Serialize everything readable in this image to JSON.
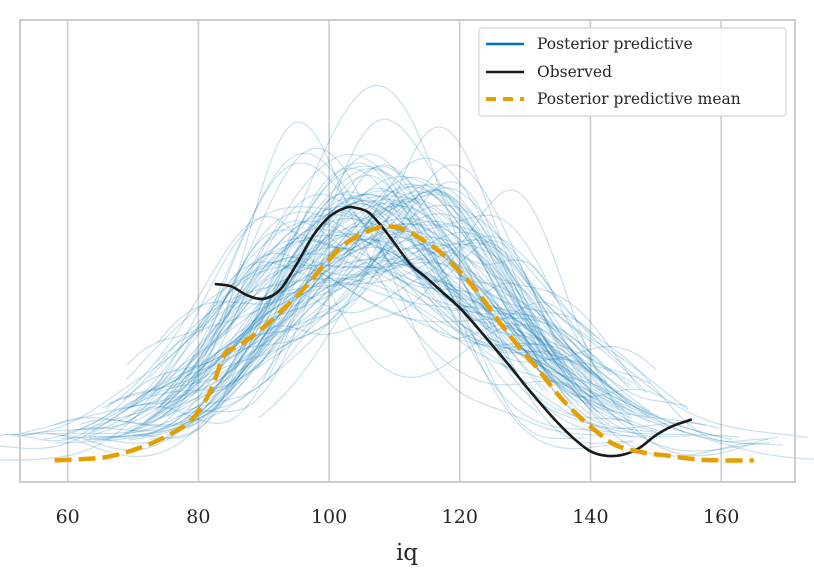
{
  "chart_data": {
    "type": "line",
    "title": "",
    "xlabel": "iq",
    "ylabel": "",
    "xlim": [
      52.7,
      171.3
    ],
    "ylim": [
      -0.0019,
      0.0387
    ],
    "xticks": [
      60,
      80,
      100,
      120,
      140,
      160
    ],
    "xtick_labels": [
      "60",
      "80",
      "100",
      "120",
      "140",
      "160"
    ],
    "yticks_visible": false,
    "grid": "vertical",
    "legend_position": "top-right",
    "colors": {
      "posterior_predictive": "#0072b2",
      "observed": "#1a1a1a",
      "posterior_predictive_mean": "#e69f00",
      "grid": "#cccccc",
      "frame": "#cccccc"
    },
    "legend": [
      {
        "label": "Posterior predictive",
        "style": "solid",
        "color": "#0072b2"
      },
      {
        "label": "Observed",
        "style": "solid",
        "color": "#1a1a1a"
      },
      {
        "label": "Posterior predictive mean",
        "style": "dashed",
        "color": "#e69f00"
      }
    ],
    "series": [
      {
        "name": "Observed",
        "x": [
          82.5,
          85,
          87.5,
          90,
          92.5,
          95,
          97.5,
          100,
          102.5,
          104,
          106,
          108,
          110,
          112.5,
          115,
          117.5,
          120,
          122.5,
          125,
          127.5,
          130,
          132.5,
          135,
          137.5,
          140,
          142.5,
          145,
          147.5,
          150,
          152.5,
          155.5
        ],
        "y": [
          0.0155,
          0.0153,
          0.0145,
          0.0142,
          0.015,
          0.0172,
          0.0197,
          0.0214,
          0.0222,
          0.0222,
          0.0218,
          0.0206,
          0.0191,
          0.0172,
          0.016,
          0.0147,
          0.0134,
          0.0118,
          0.0101,
          0.0084,
          0.0066,
          0.0049,
          0.0033,
          0.0019,
          0.0008,
          0.0004,
          0.0005,
          0.0011,
          0.0022,
          0.003,
          0.0036
        ]
      },
      {
        "name": "Posterior predictive mean",
        "x": [
          58,
          62,
          66,
          70,
          74,
          78,
          80,
          82,
          84,
          86,
          88,
          90,
          93,
          96,
          99,
          102,
          105,
          108,
          111,
          114,
          117,
          120,
          123,
          126,
          129,
          132,
          135,
          138,
          141,
          144,
          148,
          152,
          156,
          160,
          165
        ],
        "y": [
          0.0,
          0.0001,
          0.0003,
          0.0009,
          0.0018,
          0.0031,
          0.0043,
          0.0063,
          0.0093,
          0.01,
          0.0108,
          0.0117,
          0.0133,
          0.015,
          0.017,
          0.0188,
          0.0199,
          0.0205,
          0.0204,
          0.0195,
          0.0183,
          0.0166,
          0.0146,
          0.0122,
          0.01,
          0.008,
          0.0058,
          0.004,
          0.0025,
          0.0013,
          0.0007,
          0.0004,
          0.0001,
          0.0,
          0.0
        ]
      },
      {
        "name": "Posterior predictive",
        "count": 100,
        "description": "100 posterior predictive KDE draws, thin translucent blue lines spanning roughly iq 58-166, peaks between 0.015 and 0.039",
        "seed": 7
      }
    ]
  }
}
